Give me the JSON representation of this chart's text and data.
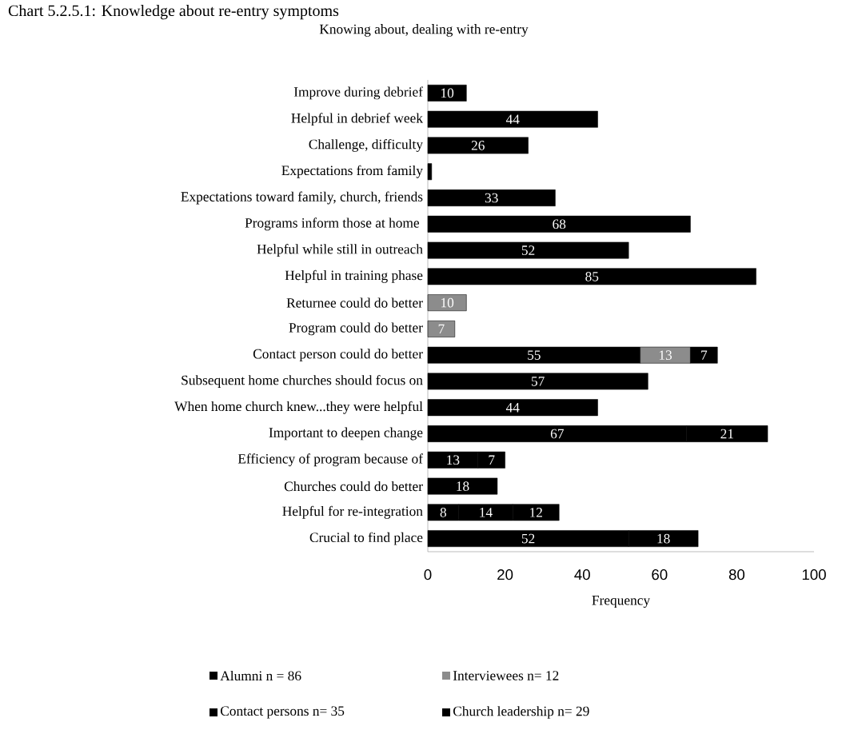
{
  "chart_data": {
    "type": "bar",
    "orientation": "horizontal",
    "stacked": true,
    "title": "Knowing about, dealing with re-entry",
    "xlabel": "Frequency",
    "annotations": [
      "Chart 5.2.5.1: Knowledge about re-entry symptoms"
    ],
    "categories": [
      "Improve during debrief",
      "Helpful in debrief week",
      "Challenge, difficulty",
      "Expectations from family",
      "Expectations toward family, church, friends",
      "Programs inform those at home ",
      "Helpful while still in outreach",
      "Helpful in training phase",
      "Returnee could do better",
      "Program could do better",
      "Contact person could do better",
      "Subsequent home churches should focus on",
      "When home church knew...they were helpful",
      "Important to deepen change",
      "Efficiency of program because of",
      "Churches could do better",
      "Helpful for re-integration",
      "Crucial to find place"
    ],
    "series": [
      {
        "name": "Alumni  n = 86",
        "color": "#000000",
        "values": [
          10,
          44,
          26,
          1,
          33,
          68,
          52,
          85,
          null,
          null,
          55,
          57,
          44,
          67,
          null,
          18,
          8,
          52
        ],
        "value_labels": [
          "10",
          "44",
          "26",
          null,
          "33",
          "68",
          "52",
          "85",
          null,
          null,
          "55",
          "57",
          "44",
          "67",
          null,
          "18",
          "8",
          "52"
        ]
      },
      {
        "name": "Interviewees n= 12",
        "color": "#8c8c8c",
        "values": [
          null,
          null,
          null,
          null,
          null,
          null,
          null,
          null,
          10,
          7,
          13,
          null,
          null,
          null,
          null,
          null,
          null,
          null
        ],
        "value_labels": [
          null,
          null,
          null,
          null,
          null,
          null,
          null,
          null,
          "10",
          "7",
          "13",
          null,
          null,
          null,
          null,
          null,
          null,
          null
        ]
      },
      {
        "name": "Contact persons n= 35",
        "color": "#000000",
        "values": [
          null,
          null,
          null,
          null,
          null,
          null,
          null,
          null,
          null,
          null,
          7,
          null,
          null,
          21,
          13,
          null,
          14,
          18
        ],
        "value_labels": [
          null,
          null,
          null,
          null,
          null,
          null,
          null,
          null,
          null,
          null,
          "7",
          null,
          null,
          "21",
          "13",
          null,
          "14",
          "18"
        ]
      },
      {
        "name": "Church leadership n= 29",
        "color": "#000000",
        "values": [
          null,
          null,
          null,
          null,
          null,
          null,
          null,
          null,
          null,
          null,
          null,
          null,
          null,
          null,
          7,
          null,
          12,
          null
        ],
        "value_labels": [
          null,
          null,
          null,
          null,
          null,
          null,
          null,
          null,
          null,
          null,
          null,
          null,
          null,
          null,
          "7",
          null,
          "12",
          null
        ]
      }
    ],
    "xlim": [
      0,
      100
    ],
    "xticks": [
      0,
      20,
      40,
      60,
      80,
      100
    ],
    "grid": false,
    "legend": "bottom"
  }
}
